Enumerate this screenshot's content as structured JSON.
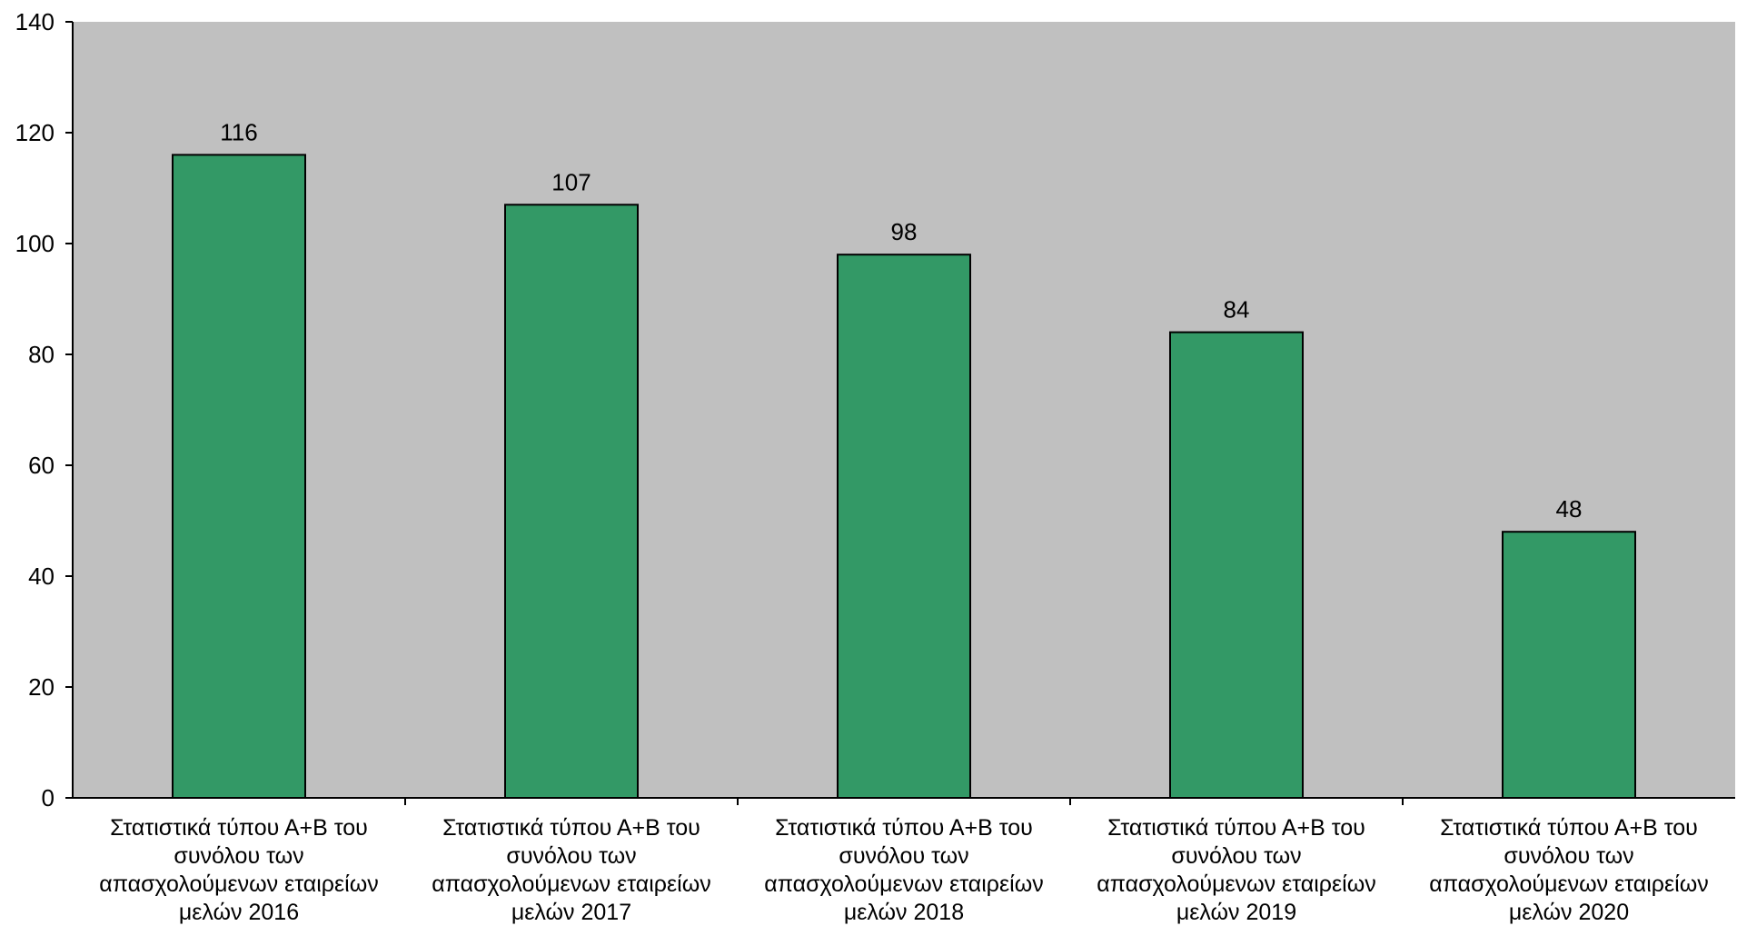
{
  "chart_data": {
    "type": "bar",
    "title": "",
    "xlabel": "",
    "ylabel": "",
    "ylim": [
      0,
      140
    ],
    "yticks": [
      0,
      20,
      40,
      60,
      80,
      100,
      120,
      140
    ],
    "grid": false,
    "categories": [
      [
        "Στατιστικά τύπου Α+Β του",
        "συνόλου των",
        "απασχολούμενων εταιρείων",
        "μελών 2016"
      ],
      [
        "Στατιστικά τύπου Α+Β του",
        "συνόλου των",
        "απασχολούμενων εταιρείων",
        "μελών 2017"
      ],
      [
        "Στατιστικά τύπου Α+Β του",
        "συνόλου των",
        "απασχολούμενων εταιρείων",
        "μελών 2018"
      ],
      [
        "Στατιστικά τύπου Α+Β του",
        "συνόλου των",
        "απασχολούμενων εταιρείων",
        "μελών 2019"
      ],
      [
        "Στατιστικά τύπου Α+Β του",
        "συνόλου των",
        "απασχολούμενων εταιρείων",
        "μελών 2020"
      ]
    ],
    "values": [
      116,
      107,
      98,
      84,
      48
    ],
    "data_labels": [
      "116",
      "107",
      "98",
      "84",
      "48"
    ],
    "colors": {
      "plot_background": "#c0c0c0",
      "bar_fill": "#339966",
      "bar_stroke": "#000000",
      "axis": "#000000"
    }
  }
}
